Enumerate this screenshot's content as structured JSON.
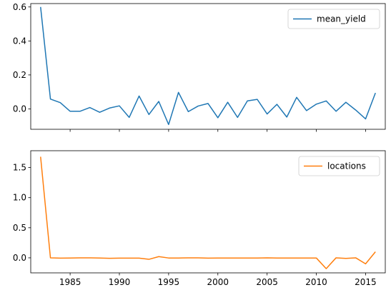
{
  "chart_data": [
    {
      "type": "line",
      "x": [
        1982,
        1983,
        1984,
        1985,
        1986,
        1987,
        1988,
        1989,
        1990,
        1991,
        1992,
        1993,
        1994,
        1995,
        1996,
        1997,
        1998,
        1999,
        2000,
        2001,
        2002,
        2003,
        2004,
        2005,
        2006,
        2007,
        2008,
        2009,
        2010,
        2011,
        2012,
        2013,
        2014,
        2015,
        2016
      ],
      "series": [
        {
          "name": "mean_yield",
          "color": "#1f77b4",
          "values": [
            0.6,
            0.058,
            0.037,
            -0.014,
            -0.014,
            0.008,
            -0.02,
            0.005,
            0.018,
            -0.05,
            0.076,
            -0.033,
            0.044,
            -0.092,
            0.097,
            -0.016,
            0.017,
            0.032,
            -0.052,
            0.039,
            -0.05,
            0.047,
            0.056,
            -0.03,
            0.027,
            -0.048,
            0.068,
            -0.01,
            0.028,
            0.047,
            -0.014,
            0.039,
            -0.007,
            -0.059,
            0.094
          ]
        }
      ],
      "xlim": [
        1981,
        2017
      ],
      "ylim": [
        -0.12,
        0.62
      ],
      "yticks": [
        0.0,
        0.2,
        0.4,
        0.6
      ],
      "ytick_labels": [
        "0.0",
        "0.2",
        "0.4",
        "0.6"
      ],
      "xticks": [
        1985,
        1990,
        1995,
        2000,
        2005,
        2010,
        2015
      ],
      "xtick_labels": [],
      "legend": "top-right",
      "grid": false
    },
    {
      "type": "line",
      "x": [
        1982,
        1983,
        1984,
        1985,
        1986,
        1987,
        1988,
        1989,
        1990,
        1991,
        1992,
        1993,
        1994,
        1995,
        1996,
        1997,
        1998,
        1999,
        2000,
        2001,
        2002,
        2003,
        2004,
        2005,
        2006,
        2007,
        2008,
        2009,
        2010,
        2011,
        2012,
        2013,
        2014,
        2015,
        2016
      ],
      "series": [
        {
          "name": "locations",
          "color": "#ff7f0e",
          "values": [
            1.68,
            0.0,
            -0.005,
            -0.003,
            0.0,
            0.0,
            -0.003,
            -0.008,
            -0.005,
            -0.005,
            -0.005,
            -0.025,
            0.02,
            -0.003,
            -0.003,
            0.0,
            0.0,
            -0.005,
            -0.003,
            -0.003,
            -0.003,
            -0.003,
            -0.003,
            0.0,
            -0.003,
            -0.003,
            -0.003,
            -0.003,
            -0.003,
            -0.18,
            0.0,
            -0.01,
            0.0,
            -0.1,
            0.1
          ]
        }
      ],
      "xlim": [
        1981,
        2017
      ],
      "ylim": [
        -0.25,
        1.78
      ],
      "yticks": [
        0.0,
        0.5,
        1.0,
        1.5
      ],
      "ytick_labels": [
        "0.0",
        "0.5",
        "1.0",
        "1.5"
      ],
      "xticks": [
        1985,
        1990,
        1995,
        2000,
        2005,
        2010,
        2015
      ],
      "xtick_labels": [
        "1985",
        "1990",
        "1995",
        "2000",
        "2005",
        "2010",
        "2015"
      ],
      "legend": "top-right",
      "grid": false
    }
  ]
}
